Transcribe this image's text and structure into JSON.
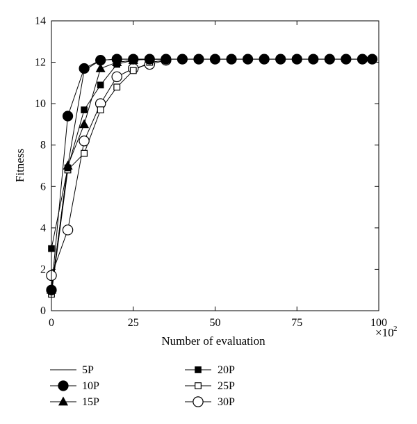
{
  "chart_data": {
    "type": "line",
    "title": "",
    "xlabel": "Number of evaluation",
    "xunit_multiplier": "×10",
    "xunit_exponent": "2",
    "ylabel": "Fitness",
    "xlim": [
      0,
      100
    ],
    "ylim": [
      0,
      14
    ],
    "xticks": [
      0,
      25,
      50,
      75,
      100
    ],
    "yticks": [
      0,
      2,
      4,
      6,
      8,
      10,
      12,
      14
    ],
    "grid": false,
    "legend_position": "bottom",
    "series": [
      {
        "name": "5P",
        "marker": "none",
        "x": [
          0,
          5,
          10,
          15,
          20,
          25,
          30,
          35,
          40,
          45,
          50,
          55,
          60,
          65,
          70,
          75,
          80,
          85,
          90,
          95,
          98
        ],
        "y": [
          1.0,
          7.0,
          11.6,
          12.1,
          12.15,
          12.15,
          12.15,
          12.15,
          12.15,
          12.15,
          12.15,
          12.15,
          12.15,
          12.15,
          12.15,
          12.15,
          12.15,
          12.15,
          12.15,
          12.15,
          12.15
        ]
      },
      {
        "name": "10P",
        "marker": "filled-circle",
        "x": [
          0,
          5,
          10,
          15,
          20,
          25,
          30,
          35,
          40,
          45,
          50,
          55,
          60,
          65,
          70,
          75,
          80,
          85,
          90,
          95,
          98
        ],
        "y": [
          1.0,
          9.4,
          11.7,
          12.1,
          12.15,
          12.15,
          12.15,
          12.15,
          12.15,
          12.15,
          12.15,
          12.15,
          12.15,
          12.15,
          12.15,
          12.15,
          12.15,
          12.15,
          12.15,
          12.15,
          12.15
        ]
      },
      {
        "name": "15P",
        "marker": "filled-triangle",
        "x": [
          0,
          5,
          10,
          15,
          20,
          25,
          30,
          35
        ],
        "y": [
          1.0,
          7.0,
          9.0,
          11.7,
          12.0,
          12.1,
          12.15,
          12.15
        ]
      },
      {
        "name": "20P",
        "marker": "filled-square",
        "x": [
          0,
          5,
          10,
          15,
          20,
          25,
          30,
          35
        ],
        "y": [
          3.0,
          6.9,
          9.7,
          10.9,
          11.9,
          12.1,
          12.15,
          12.15
        ]
      },
      {
        "name": "25P",
        "marker": "open-square",
        "x": [
          0,
          5,
          10,
          15,
          20,
          25,
          30,
          35
        ],
        "y": [
          0.8,
          6.8,
          7.6,
          9.7,
          10.8,
          11.6,
          12.0,
          12.1
        ]
      },
      {
        "name": "30P",
        "marker": "open-circle",
        "x": [
          0,
          5,
          10,
          15,
          20,
          25,
          30,
          35
        ],
        "y": [
          1.7,
          3.9,
          8.2,
          10.0,
          11.3,
          11.7,
          11.9,
          12.1
        ]
      }
    ]
  }
}
